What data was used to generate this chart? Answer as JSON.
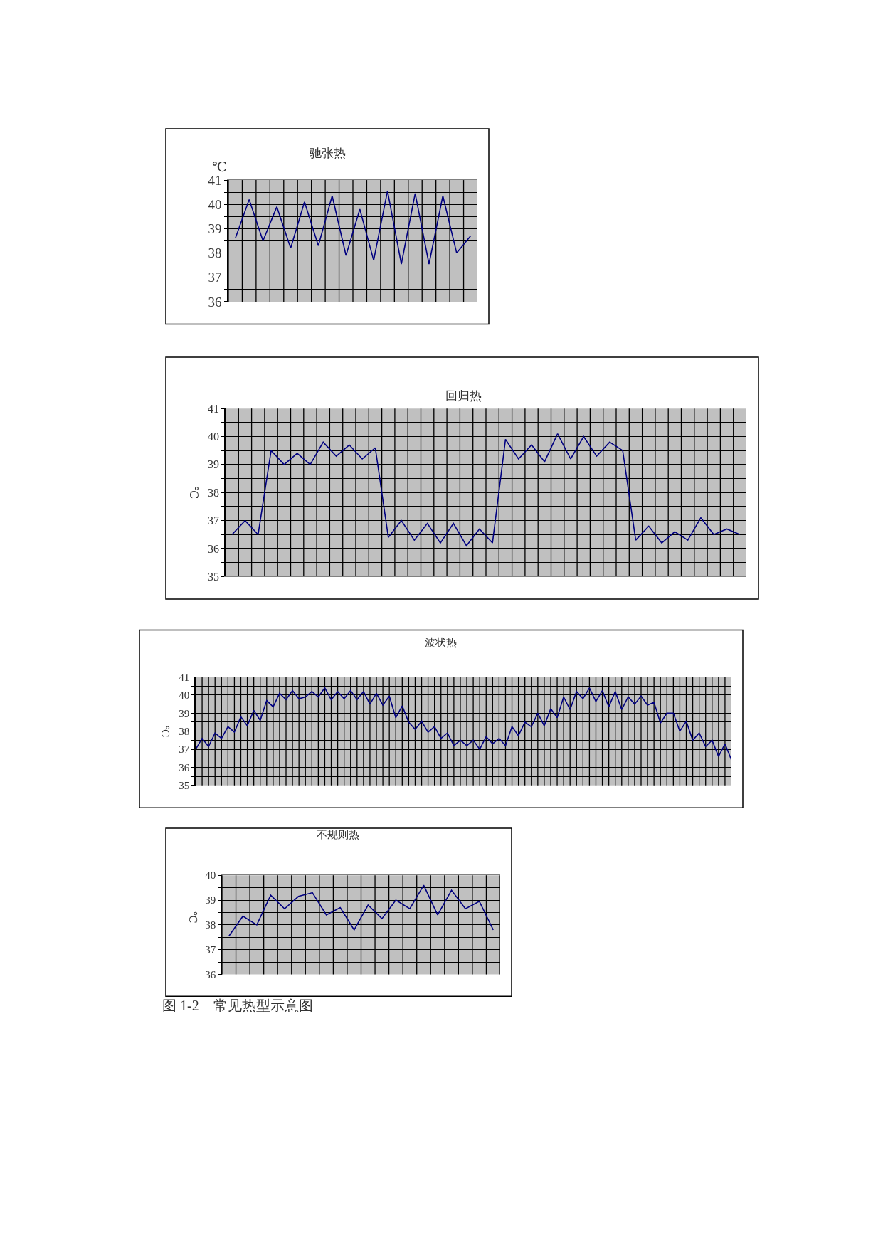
{
  "chart_data": [
    {
      "type": "line",
      "title": "驰张热",
      "ylabel": "℃",
      "categories": [
        null,
        null,
        null,
        null,
        null,
        null,
        null,
        null,
        null,
        null,
        null,
        null,
        null,
        null,
        null,
        null,
        null,
        null
      ],
      "series": [
        {
          "color": "#000080",
          "values": [
            38.6,
            40.2,
            38.5,
            39.9,
            38.2,
            40.1,
            38.3,
            40.35,
            37.9,
            39.8,
            37.7,
            40.55,
            37.55,
            40.45,
            37.55,
            40.35,
            38.0,
            38.7
          ]
        }
      ],
      "ylim": [
        36,
        41
      ],
      "yticks": [
        36,
        {
          "value": 36.5,
          "label": null
        },
        37,
        {
          "value": 37.5,
          "label": null
        },
        38,
        {
          "value": 38.5,
          "label": null
        },
        39,
        {
          "value": 39.5,
          "label": null
        },
        40,
        {
          "value": 40.5,
          "label": null
        },
        41
      ],
      "grid": true,
      "tick_labels": "y",
      "marker": "none",
      "line_style": "solid"
    },
    {
      "type": "line",
      "title": "回归热",
      "ylabel": "℃",
      "categories": [
        null,
        null,
        null,
        null,
        null,
        null,
        null,
        null,
        null,
        null,
        null,
        null,
        null,
        null,
        null,
        null,
        null,
        null,
        null,
        null,
        null,
        null,
        null,
        null,
        null,
        null,
        null,
        null,
        null,
        null,
        null,
        null,
        null,
        null,
        null,
        null,
        null,
        null,
        null,
        null
      ],
      "series": [
        {
          "color": "#000080",
          "values": [
            36.5,
            37.0,
            36.5,
            39.5,
            39.0,
            39.4,
            39.0,
            39.8,
            39.3,
            39.7,
            39.2,
            39.6,
            36.4,
            37.0,
            36.3,
            36.9,
            36.2,
            36.9,
            36.1,
            36.7,
            36.2,
            39.9,
            39.2,
            39.7,
            39.1,
            40.1,
            39.2,
            40.0,
            39.3,
            39.8,
            39.5,
            36.3,
            36.8,
            36.2,
            36.6,
            36.3,
            37.1,
            36.5,
            36.7,
            36.5
          ]
        }
      ],
      "ylim": [
        35,
        41
      ],
      "yticks": [
        35,
        {
          "value": 35.5,
          "label": null
        },
        36,
        {
          "value": 36.5,
          "label": null
        },
        37,
        {
          "value": 37.5,
          "label": null
        },
        38,
        {
          "value": 38.5,
          "label": null
        },
        39,
        {
          "value": 39.5,
          "label": null
        },
        40,
        {
          "value": 40.5,
          "label": null
        },
        41
      ],
      "grid": true,
      "tick_labels": "y",
      "marker": "none",
      "line_style": "solid"
    },
    {
      "type": "line",
      "title": "波状热",
      "ylabel": "℃",
      "categories": [
        null,
        null,
        null,
        null,
        null,
        null,
        null,
        null,
        null,
        null,
        null,
        null,
        null,
        null,
        null,
        null,
        null,
        null,
        null,
        null,
        null,
        null,
        null,
        null,
        null,
        null,
        null,
        null,
        null,
        null,
        null,
        null,
        null,
        null,
        null,
        null,
        null,
        null,
        null,
        null,
        null,
        null,
        null,
        null,
        null,
        null,
        null,
        null,
        null,
        null,
        null,
        null,
        null,
        null,
        null,
        null,
        null,
        null,
        null,
        null,
        null,
        null,
        null,
        null,
        null,
        null,
        null,
        null,
        null,
        null,
        null,
        null,
        null,
        null,
        null,
        null,
        null,
        null,
        null,
        null,
        null,
        null,
        null,
        null
      ],
      "series": [
        {
          "color": "#000080",
          "values": [
            37.0,
            37.6,
            37.15,
            37.9,
            37.6,
            38.25,
            37.95,
            38.8,
            38.3,
            39.15,
            38.6,
            39.7,
            39.35,
            40.1,
            39.75,
            40.25,
            39.8,
            39.9,
            40.2,
            39.9,
            40.4,
            39.75,
            40.2,
            39.8,
            40.25,
            39.75,
            40.2,
            39.5,
            40.1,
            39.45,
            39.95,
            38.75,
            39.4,
            38.5,
            38.1,
            38.55,
            37.95,
            38.25,
            37.6,
            37.9,
            37.2,
            37.5,
            37.2,
            37.5,
            37.0,
            37.7,
            37.3,
            37.6,
            37.2,
            38.25,
            37.75,
            38.5,
            38.25,
            39.0,
            38.3,
            39.25,
            38.75,
            39.9,
            39.2,
            40.2,
            39.8,
            40.4,
            39.65,
            40.25,
            39.35,
            40.2,
            39.2,
            39.9,
            39.5,
            39.95,
            39.45,
            39.6,
            38.45,
            39.0,
            39.0,
            38.0,
            38.55,
            37.5,
            37.9,
            37.15,
            37.5,
            36.6,
            37.3,
            36.4
          ]
        }
      ],
      "ylim": [
        35,
        41
      ],
      "yticks": [
        35,
        {
          "value": 35.5,
          "label": null
        },
        36,
        {
          "value": 36.5,
          "label": null
        },
        37,
        {
          "value": 37.5,
          "label": null
        },
        38,
        {
          "value": 38.5,
          "label": null
        },
        39,
        {
          "value": 39.5,
          "label": null
        },
        40,
        {
          "value": 40.5,
          "label": null
        },
        41
      ],
      "grid": true,
      "tick_labels": "y",
      "marker": "none",
      "line_style": "solid"
    },
    {
      "type": "line",
      "title": "不规则热",
      "ylabel": "℃",
      "annotations": [
        "图 1-2　常见热型示意图"
      ],
      "categories": [
        null,
        null,
        null,
        null,
        null,
        null,
        null,
        null,
        null,
        null,
        null,
        null,
        null,
        null,
        null,
        null,
        null,
        null,
        null,
        null
      ],
      "series": [
        {
          "color": "#000080",
          "values": [
            37.55,
            38.35,
            38.0,
            39.2,
            38.65,
            39.15,
            39.3,
            38.4,
            38.7,
            37.8,
            38.8,
            38.25,
            39.0,
            38.65,
            39.6,
            38.4,
            39.4,
            38.65,
            38.95,
            37.8
          ]
        }
      ],
      "ylim": [
        36,
        40
      ],
      "yticks": [
        36,
        {
          "value": 36.5,
          "label": null
        },
        37,
        {
          "value": 37.5,
          "label": null
        },
        38,
        {
          "value": 38.5,
          "label": null
        },
        39,
        {
          "value": 39.5,
          "label": null
        },
        40
      ],
      "grid": true,
      "tick_labels": "y",
      "marker": "none",
      "line_style": "solid"
    }
  ]
}
